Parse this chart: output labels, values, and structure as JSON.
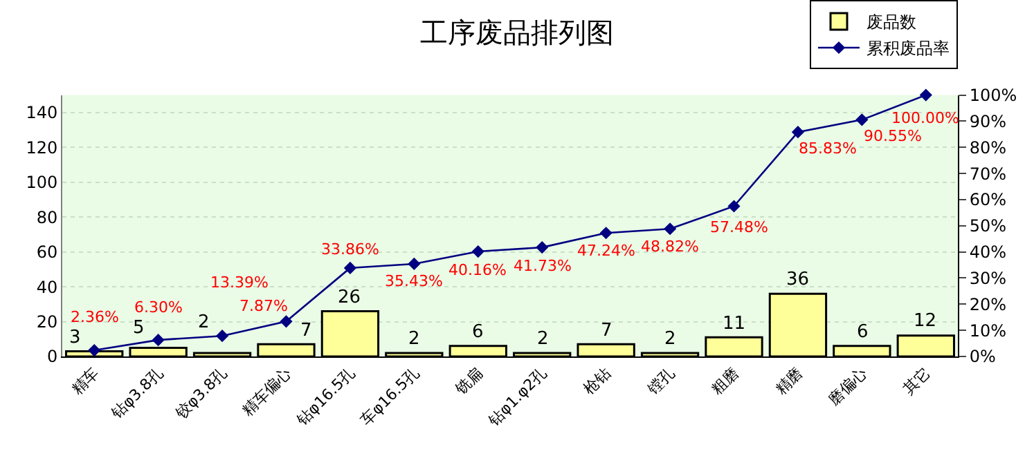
{
  "chart_data": {
    "type": "bar",
    "title": "工序废品排列图",
    "categories": [
      "精车",
      "钻φ3.8孔",
      "铰φ3.8孔",
      "精车偏心",
      "钻φ16.5孔",
      "车φ16.5孔",
      "铣扁",
      "钻φ1.φ2孔",
      "枪钻",
      "镗孔",
      "粗磨",
      "精磨",
      "磨偏心",
      "其它"
    ],
    "series": [
      {
        "name": "废品数",
        "color": "#ffff99",
        "values": [
          3,
          5,
          2,
          7,
          26,
          2,
          6,
          2,
          7,
          2,
          11,
          36,
          6,
          12
        ],
        "value_labels": [
          "3",
          "5",
          "2",
          "7",
          "26",
          "2",
          "6",
          "2",
          "7",
          "2",
          "11",
          "36",
          "6",
          "12"
        ]
      },
      {
        "name": "累积废品率",
        "type": "line",
        "axis": "y2",
        "color": "#000080",
        "values": [
          2.36,
          6.3,
          7.87,
          13.39,
          33.86,
          35.43,
          40.16,
          41.73,
          47.24,
          48.82,
          57.48,
          85.83,
          90.55,
          100.0
        ],
        "value_labels": [
          "2.36%",
          "6.30%",
          "7.87%",
          "13.39%",
          "33.86%",
          "35.43%",
          "40.16%",
          "41.73%",
          "47.24%",
          "48.82%",
          "57.48%",
          "85.83%",
          "90.55%",
          "100.00%"
        ]
      }
    ],
    "ylim": [
      0,
      150
    ],
    "yticks": [
      0,
      20,
      40,
      60,
      80,
      100,
      120,
      140
    ],
    "y2lim": [
      0,
      100
    ],
    "y2ticks": [
      {
        "value": 0,
        "label": "0%"
      },
      {
        "value": 10,
        "label": "10%"
      },
      {
        "value": 20,
        "label": "20%"
      },
      {
        "value": 30,
        "label": "30%"
      },
      {
        "value": 40,
        "label": "40%"
      },
      {
        "value": 50,
        "label": "50%"
      },
      {
        "value": 60,
        "label": "60%"
      },
      {
        "value": 70,
        "label": "70%"
      },
      {
        "value": 80,
        "label": "80%"
      },
      {
        "value": 90,
        "label": "90%"
      },
      {
        "value": 100,
        "label": "100%"
      }
    ],
    "grid": "y",
    "legend": "top right",
    "marker": "diamond",
    "line_style": "solid"
  }
}
